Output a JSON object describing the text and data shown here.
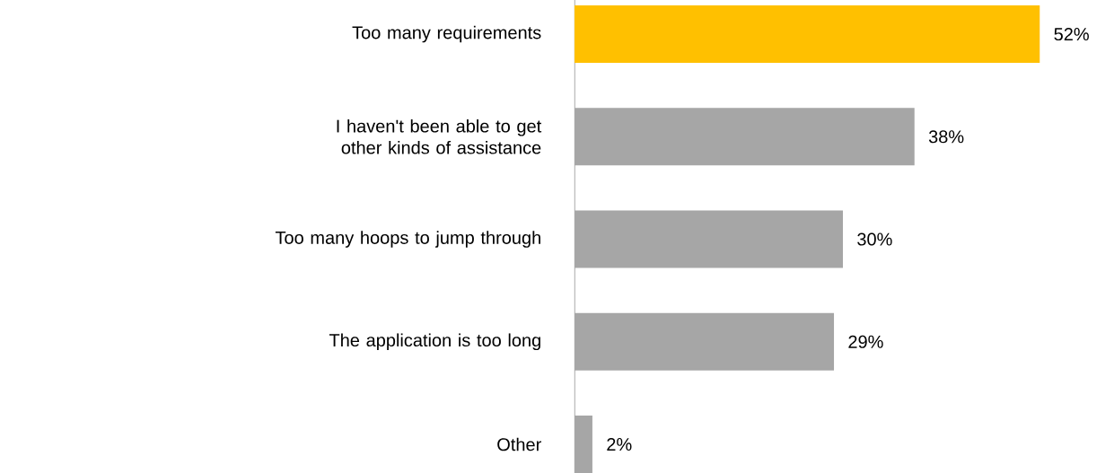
{
  "chart_data": {
    "type": "bar",
    "orientation": "horizontal",
    "categories": [
      "Too many requirements",
      "I haven't been able to get other kinds of assistance",
      "Too many hoops to jump through",
      "The application is too long",
      "Other"
    ],
    "values": [
      52,
      38,
      30,
      29,
      2
    ],
    "colors": [
      "#ffc000",
      "#a6a6a6",
      "#a6a6a6",
      "#a6a6a6",
      "#a6a6a6"
    ],
    "value_labels": [
      "52%",
      "38%",
      "30%",
      "29%",
      "2%"
    ],
    "tick_labels": "y"
  }
}
